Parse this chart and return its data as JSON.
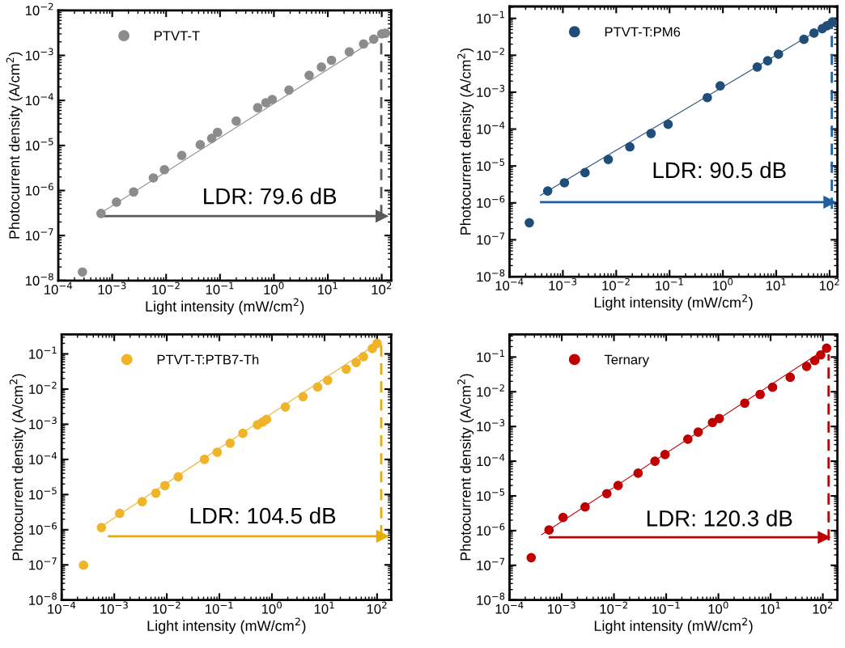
{
  "chart_data": [
    {
      "type": "scatter",
      "xlabel": "Light intensity (mW/cm$^{2}$)",
      "ylabel": "Photocurrent density (A/cm$^{2}$)",
      "log": "xy",
      "legend": "top left",
      "grid": false,
      "xlim": [
        0.0001,
        150
      ],
      "ylim": [
        1e-08,
        0.01
      ],
      "xticks": [
        {
          "value": 0.0001,
          "label": "10$^{−4}$"
        },
        {
          "value": 0.001,
          "label": "10$^{−3}$"
        },
        {
          "value": 0.01,
          "label": "10$^{−2}$"
        },
        {
          "value": 0.1,
          "label": "10$^{−1}$"
        },
        {
          "value": 1,
          "label": "10$^{0}$"
        },
        {
          "value": 10,
          "label": "10$^{1}$"
        },
        {
          "value": 100,
          "label": "10$^{2}$"
        }
      ],
      "yticks": [
        {
          "value": 1e-08,
          "label": "10$^{−8}$"
        },
        {
          "value": 1e-07,
          "label": "10$^{−7}$"
        },
        {
          "value": 1e-06,
          "label": "10$^{−6}$"
        },
        {
          "value": 1e-05,
          "label": "10$^{−5}$"
        },
        {
          "value": 0.0001,
          "label": "10$^{−4}$"
        },
        {
          "value": 0.001,
          "label": "10$^{−3}$"
        },
        {
          "value": 0.01,
          "label": "10$^{−2}$"
        }
      ],
      "series": [
        {
          "marker": "circle",
          "name": "PTVT-T",
          "color": "#8c8c8c",
          "x": [
            0.00028,
            0.00062,
            0.0012,
            0.0025,
            0.0058,
            0.0093,
            0.0195,
            0.043,
            0.07,
            0.09,
            0.2,
            0.5,
            0.71,
            0.93,
            1.9,
            4.5,
            7.6,
            11.7,
            25,
            46,
            71,
            100,
            117
          ],
          "values": [
            1.55e-08,
            3.1e-07,
            5.5e-07,
            9.3e-07,
            1.9e-06,
            2.9e-06,
            6e-06,
            1.04e-05,
            1.44e-05,
            1.96e-05,
            3.5e-05,
            6.9e-05,
            8.9e-05,
            0.000105,
            0.00017,
            0.00036,
            0.00055,
            0.00078,
            0.0012,
            0.0018,
            0.0023,
            0.003,
            0.0031
          ]
        },
        {
          "type": "line",
          "marker": "none",
          "color": "#8c8c8c",
          "x": [
            0.0006,
            120
          ],
          "values": [
            3.1e-07,
            0.0032
          ]
        },
        {
          "type": "line",
          "color": "#595959",
          "marker": "triangle",
          "x": [
            0.00066,
            100
          ],
          "values": [
            2.7e-07,
            2.7e-07
          ]
        },
        {
          "type": "line",
          "marker": "none",
          "color": "#595959",
          "line_style": "dashed",
          "x": [
            98,
            98
          ],
          "values": [
            2.7e-07,
            0.0027
          ]
        }
      ],
      "annotations": [
        "LDR: 79.6 dB"
      ]
    },
    {
      "type": "scatter",
      "xlabel": "Light intensity (mW/cm$^{2}$)",
      "ylabel": "Photocurrent density (A/cm$^{2}$)",
      "log": "xy",
      "legend": "top left",
      "grid": false,
      "xlim": [
        0.0001,
        140
      ],
      "ylim": [
        1e-08,
        0.21
      ],
      "xticks": [
        {
          "value": 0.0001,
          "label": "10$^{−4}$"
        },
        {
          "value": 0.001,
          "label": "10$^{−3}$"
        },
        {
          "value": 0.01,
          "label": "10$^{−2}$"
        },
        {
          "value": 0.1,
          "label": "10$^{−1}$"
        },
        {
          "value": 1,
          "label": "10$^{0}$"
        },
        {
          "value": 10,
          "label": "10$^{1}$"
        },
        {
          "value": 100,
          "label": "10$^{2}$"
        }
      ],
      "yticks": [
        {
          "value": 1e-08,
          "label": "10$^{−8}$"
        },
        {
          "value": 1e-07,
          "label": "10$^{−7}$"
        },
        {
          "value": 1e-06,
          "label": "10$^{−6}$"
        },
        {
          "value": 1e-05,
          "label": "10$^{−5}$"
        },
        {
          "value": 0.0001,
          "label": "10$^{−4}$"
        },
        {
          "value": 0.001,
          "label": "10$^{−3}$"
        },
        {
          "value": 0.01,
          "label": "10$^{−2}$"
        },
        {
          "value": 0.1,
          "label": "10$^{−1}$"
        }
      ],
      "series": [
        {
          "marker": "circle",
          "name": "PTVT-T:PM6",
          "color": "#1f4e79",
          "x": [
            0.000235,
            0.00052,
            0.00107,
            0.0026,
            0.0071,
            0.018,
            0.045,
            0.094,
            0.51,
            0.89,
            4.4,
            6.9,
            11,
            33,
            51,
            73,
            89,
            112
          ],
          "values": [
            2.9e-07,
            2.1e-06,
            3.5e-06,
            6.6e-06,
            1.5e-05,
            3.3e-05,
            7.6e-05,
            0.000135,
            0.00071,
            0.00148,
            0.0048,
            0.0071,
            0.0107,
            0.027,
            0.04,
            0.053,
            0.063,
            0.079
          ]
        },
        {
          "type": "line",
          "marker": "none",
          "color": "#1f4e79",
          "x": [
            0.00038,
            126
          ],
          "values": [
            1.6e-06,
            0.089
          ]
        },
        {
          "type": "line",
          "color": "#1f5fa0",
          "marker": "triangle",
          "x": [
            0.00039,
            100
          ],
          "values": [
            1.05e-06,
            1.05e-06
          ]
        },
        {
          "type": "line",
          "marker": "none",
          "color": "#1f5fa0",
          "line_style": "dashed",
          "x": [
            110,
            110
          ],
          "values": [
            6.9e-07,
            0.063
          ]
        }
      ],
      "annotations": [
        "LDR: 90.5 dB"
      ]
    },
    {
      "type": "scatter",
      "xlabel": "Light intensity (mW/cm$^{2}$)",
      "ylabel": "Photocurrent density (A/cm$^{2}$)",
      "log": "xy",
      "legend": "top left",
      "grid": false,
      "xlim": [
        0.0001,
        186
      ],
      "ylim": [
        1e-08,
        0.36
      ],
      "xticks": [
        {
          "value": 0.0001,
          "label": "10$^{−4}$"
        },
        {
          "value": 0.001,
          "label": "10$^{−3}$"
        },
        {
          "value": 0.01,
          "label": "10$^{−2}$"
        },
        {
          "value": 0.1,
          "label": "10$^{−1}$"
        },
        {
          "value": 1,
          "label": "10$^{0}$"
        },
        {
          "value": 10,
          "label": "10$^{1}$"
        },
        {
          "value": 100,
          "label": "10$^{2}$"
        }
      ],
      "yticks": [
        {
          "value": 1e-08,
          "label": "10$^{−8}$"
        },
        {
          "value": 1e-07,
          "label": "10$^{−7}$"
        },
        {
          "value": 1e-06,
          "label": "10$^{−6}$"
        },
        {
          "value": 1e-05,
          "label": "10$^{−5}$"
        },
        {
          "value": 0.0001,
          "label": "10$^{−4}$"
        },
        {
          "value": 0.001,
          "label": "10$^{−3}$"
        },
        {
          "value": 0.01,
          "label": "10$^{−2}$"
        },
        {
          "value": 0.1,
          "label": "10$^{−1}$"
        }
      ],
      "series": [
        {
          "marker": "circle",
          "name": "PTVT-T:PTB7-Th",
          "color": "#f0b429",
          "x": [
            0.00026,
            0.00057,
            0.00127,
            0.0034,
            0.0062,
            0.0092,
            0.0165,
            0.052,
            0.091,
            0.16,
            0.28,
            0.53,
            0.66,
            0.79,
            1.8,
            3.9,
            7.4,
            11.5,
            26,
            40,
            55,
            81,
            100
          ],
          "values": [
            9.8e-08,
            1.15e-06,
            2.9e-06,
            6.3e-06,
            1.1e-05,
            1.8e-05,
            3.2e-05,
            0.0001,
            0.00016,
            0.00029,
            0.00055,
            0.00096,
            0.00115,
            0.00138,
            0.0031,
            0.0061,
            0.0114,
            0.0177,
            0.037,
            0.057,
            0.084,
            0.142,
            0.2
          ]
        },
        {
          "type": "line",
          "marker": "none",
          "color": "#f0b429",
          "x": [
            0.00055,
            107
          ],
          "values": [
            1.2e-06,
            0.21
          ]
        },
        {
          "type": "line",
          "color": "#e6ac00",
          "marker": "triangle",
          "x": [
            0.00079,
            126
          ],
          "values": [
            6.5e-07,
            6.5e-07
          ]
        },
        {
          "type": "line",
          "marker": "none",
          "color": "#e6ac00",
          "line_style": "dashed",
          "x": [
            120,
            120
          ],
          "values": [
            6.5e-07,
            0.2
          ]
        }
      ],
      "annotations": [
        "LDR: 104.5 dB"
      ]
    },
    {
      "type": "scatter",
      "xlabel": "Light intensity (mW/cm$^{2}$)",
      "ylabel": "Photocurrent density (A/cm$^{2}$)",
      "log": "xy",
      "legend": "top left",
      "grid": false,
      "xlim": [
        0.0001,
        190
      ],
      "ylim": [
        1e-08,
        0.45
      ],
      "xticks": [
        {
          "value": 0.0001,
          "label": "10$^{−4}$"
        },
        {
          "value": 0.001,
          "label": "10$^{−3}$"
        },
        {
          "value": 0.01,
          "label": "10$^{−2}$"
        },
        {
          "value": 0.1,
          "label": "10$^{−1}$"
        },
        {
          "value": 1,
          "label": "10$^{0}$"
        },
        {
          "value": 10,
          "label": "10$^{1}$"
        },
        {
          "value": 100,
          "label": "10$^{2}$"
        }
      ],
      "yticks": [
        {
          "value": 1e-08,
          "label": "10$^{−8}$"
        },
        {
          "value": 1e-07,
          "label": "10$^{−7}$"
        },
        {
          "value": 1e-06,
          "label": "10$^{−6}$"
        },
        {
          "value": 1e-05,
          "label": "10$^{−5}$"
        },
        {
          "value": 0.0001,
          "label": "10$^{−4}$"
        },
        {
          "value": 0.001,
          "label": "10$^{−3}$"
        },
        {
          "value": 0.01,
          "label": "10$^{−2}$"
        },
        {
          "value": 0.1,
          "label": "10$^{−1}$"
        }
      ],
      "series": [
        {
          "marker": "circle",
          "name": "Ternary",
          "color": "#c00000",
          "x": [
            0.00026,
            0.00057,
            0.00106,
            0.0028,
            0.0073,
            0.012,
            0.029,
            0.061,
            0.095,
            0.26,
            0.41,
            0.77,
            1.04,
            3.2,
            6.3,
            10.9,
            23.7,
            49,
            70,
            91,
            118
          ],
          "values": [
            1.66e-07,
            1.04e-06,
            2.4e-06,
            4.8e-06,
            1.16e-05,
            2e-05,
            4.5e-05,
            0.0001,
            0.000155,
            0.00043,
            0.00069,
            0.0013,
            0.0017,
            0.0047,
            0.0084,
            0.0135,
            0.026,
            0.054,
            0.079,
            0.115,
            0.18
          ]
        },
        {
          "type": "line",
          "marker": "none",
          "color": "#c00000",
          "x": [
            0.00041,
            132
          ],
          "values": [
            7.6e-07,
            0.2
          ]
        },
        {
          "type": "line",
          "color": "#c00000",
          "marker": "triangle",
          "x": [
            0.00059,
            105
          ],
          "values": [
            6.4e-07,
            6.4e-07
          ]
        },
        {
          "type": "line",
          "marker": "none",
          "color": "#c00000",
          "line_style": "dashed",
          "x": [
            129,
            129
          ],
          "values": [
            5.2e-07,
            0.12
          ]
        }
      ],
      "annotations": [
        "LDR: 120.3 dB"
      ]
    }
  ]
}
